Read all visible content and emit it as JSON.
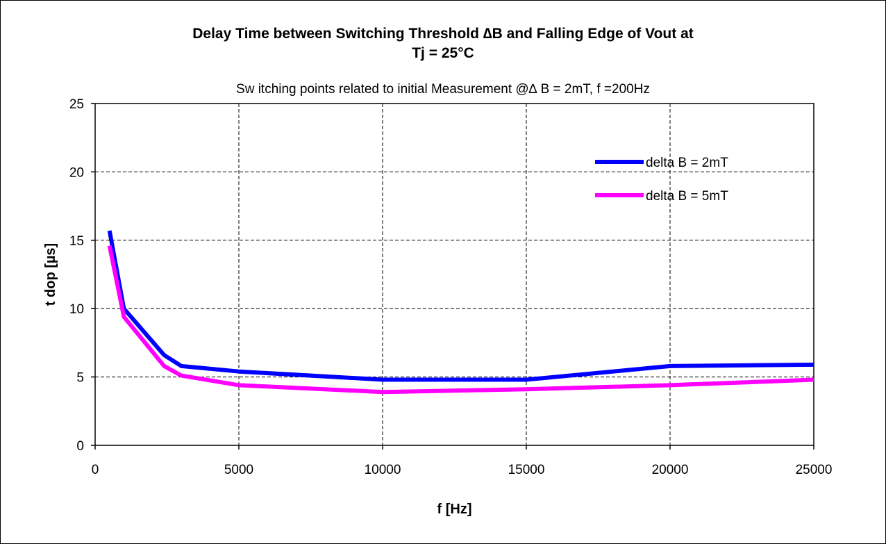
{
  "chart_data": {
    "type": "line",
    "title_lines": [
      "Delay Time between Switching Threshold ∆B and Falling Edge of Vout at",
      "Tj = 25°C"
    ],
    "subtitle": "Sw itching points related to initial Measurement @∆ B = 2mT,  f =200Hz",
    "xlabel": "f [Hz]",
    "ylabel": "t dop [µs]",
    "xlim": [
      0,
      25000
    ],
    "ylim": [
      0,
      25
    ],
    "x_ticks": [
      0,
      5000,
      10000,
      15000,
      20000,
      25000
    ],
    "y_ticks": [
      0,
      5,
      10,
      15,
      20,
      25
    ],
    "grid": true,
    "legend_position": "top-right",
    "series": [
      {
        "name": "delta B = 2mT",
        "color": "#0000FF",
        "x": [
          500,
          1000,
          2400,
          3000,
          5000,
          10000,
          15000,
          20000,
          25000
        ],
        "y": [
          15.7,
          10,
          6.6,
          5.8,
          5.4,
          4.8,
          4.8,
          5.8,
          5.9
        ]
      },
      {
        "name": "delta B = 5mT",
        "color": "#FF00FF",
        "x": [
          500,
          1000,
          2400,
          3000,
          5000,
          10000,
          15000,
          20000,
          25000
        ],
        "y": [
          14.6,
          9.4,
          5.8,
          5.1,
          4.4,
          3.9,
          4.1,
          4.4,
          4.8
        ]
      }
    ]
  }
}
